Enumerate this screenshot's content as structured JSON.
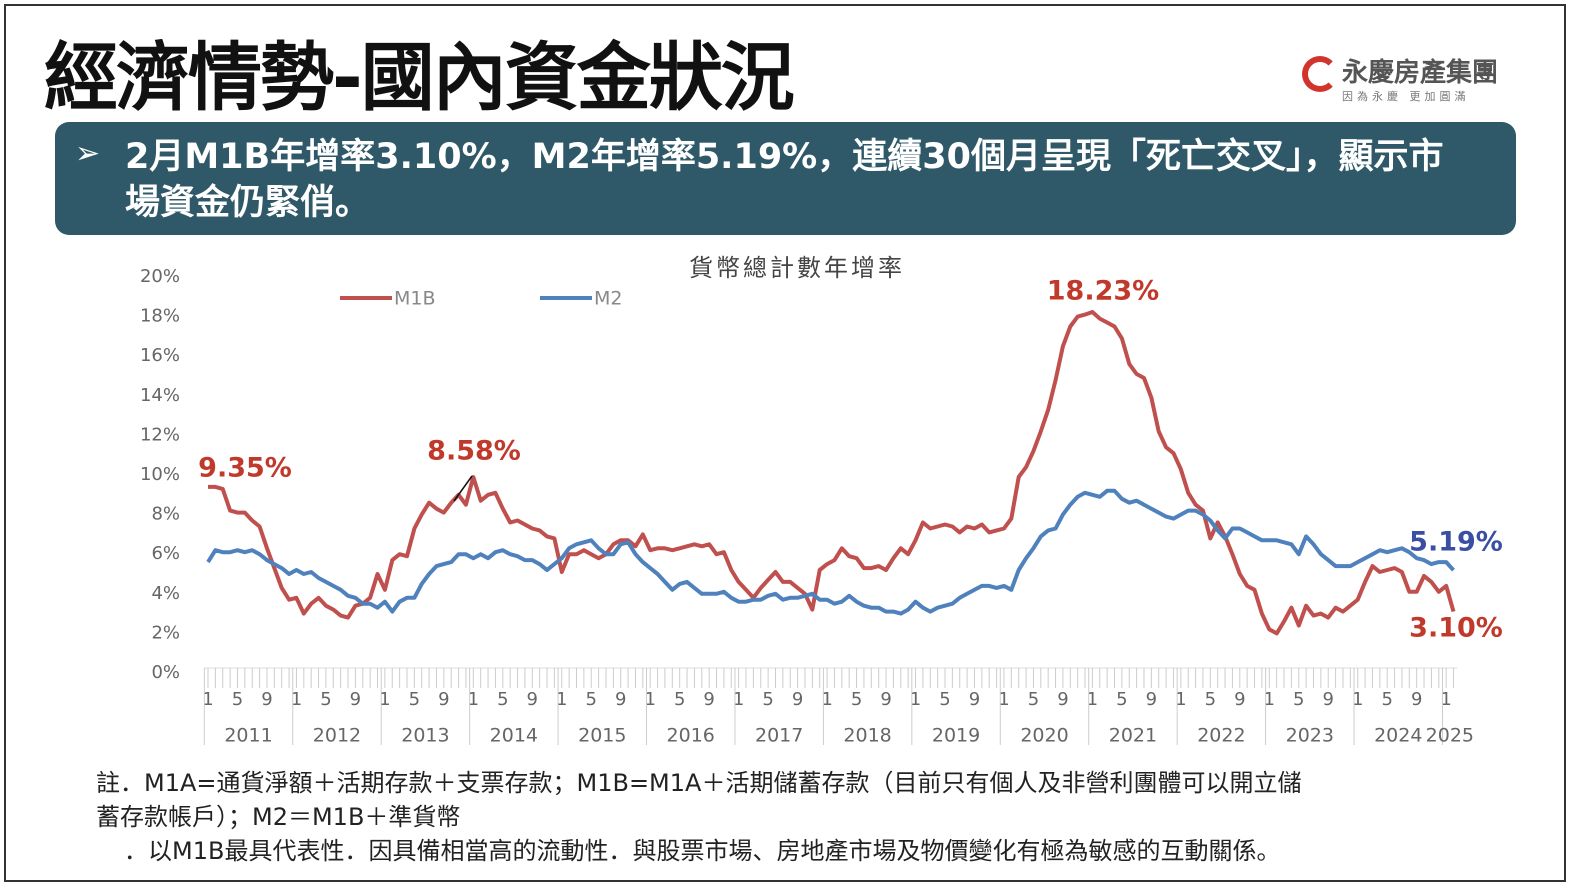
{
  "header": {
    "title": "經濟情勢-國內資金狀況",
    "logo": "永慶房產集團",
    "logo_tagline": "因為永慶 更加圓滿"
  },
  "banner": {
    "bullet": "➢",
    "text": "2月M1B年增率3.10%，M2年增率5.19%，連續30個月呈現「死亡交叉」，顯示市場資金仍緊俏。"
  },
  "chart_data": {
    "type": "line",
    "title": "貨幣總計數年增率",
    "categories": [
      "1",
      null,
      null,
      null,
      "5",
      null,
      null,
      null,
      "9",
      null,
      null,
      null,
      "1",
      null,
      null,
      null,
      "5",
      null,
      null,
      null,
      "9",
      null,
      null,
      null,
      "1",
      null,
      null,
      null,
      "5",
      null,
      null,
      null,
      "9",
      null,
      null,
      null,
      "1",
      null,
      null,
      null,
      "5",
      null,
      null,
      null,
      "9",
      null,
      null,
      null,
      "1",
      null,
      null,
      null,
      "5",
      null,
      null,
      null,
      "9",
      null,
      null,
      null,
      "1",
      null,
      null,
      null,
      "5",
      null,
      null,
      null,
      "9",
      null,
      null,
      null,
      "1",
      null,
      null,
      null,
      "5",
      null,
      null,
      null,
      "9",
      null,
      null,
      null,
      "1",
      null,
      null,
      null,
      "5",
      null,
      null,
      null,
      "9",
      null,
      null,
      null,
      "1",
      null,
      null,
      null,
      "5",
      null,
      null,
      null,
      "9",
      null,
      null,
      null,
      "1",
      null,
      null,
      null,
      "5",
      null,
      null,
      null,
      "9",
      null,
      null,
      null,
      "1",
      null,
      null,
      null,
      "5",
      null,
      null,
      null,
      "9",
      null,
      null,
      null,
      "1",
      null,
      null,
      null,
      "5",
      null,
      null,
      null,
      "9",
      null,
      null,
      null,
      "1",
      null,
      null,
      null,
      "5",
      null,
      null,
      null,
      "9",
      null,
      null,
      null,
      "1",
      null,
      null,
      null,
      "5",
      null,
      null,
      null,
      "9",
      null,
      null,
      null,
      "1",
      null
    ],
    "years": [
      "2011",
      "2012",
      "2013",
      "2014",
      "2015",
      "2016",
      "2017",
      "2018",
      "2019",
      "2020",
      "2021",
      "2022",
      "2023",
      "2024",
      "2025"
    ],
    "series": [
      {
        "name": "M1B",
        "color": "#c0504d",
        "values": [
          9.4,
          9.4,
          9.3,
          8.2,
          8.1,
          8.1,
          7.7,
          7.4,
          6.3,
          5.3,
          4.3,
          3.7,
          3.8,
          3.0,
          3.5,
          3.8,
          3.4,
          3.2,
          2.9,
          2.8,
          3.4,
          3.5,
          3.8,
          5.0,
          4.2,
          5.7,
          6.0,
          5.9,
          7.3,
          8.0,
          8.6,
          8.3,
          8.1,
          8.6,
          9.0,
          8.5,
          9.9,
          8.7,
          9.0,
          9.1,
          8.3,
          7.6,
          7.7,
          7.5,
          7.3,
          7.2,
          6.9,
          6.8,
          5.1,
          6.0,
          6.0,
          6.2,
          6.0,
          5.8,
          6.0,
          6.5,
          6.7,
          6.7,
          6.4,
          7.0,
          6.2,
          6.3,
          6.3,
          6.2,
          6.3,
          6.4,
          6.5,
          6.4,
          6.5,
          6.0,
          6.1,
          5.2,
          4.6,
          4.2,
          3.8,
          4.3,
          4.7,
          5.1,
          4.6,
          4.6,
          4.3,
          4.0,
          3.2,
          5.2,
          5.5,
          5.7,
          6.3,
          5.9,
          5.8,
          5.3,
          5.3,
          5.4,
          5.2,
          5.8,
          6.3,
          6.0,
          6.7,
          7.6,
          7.3,
          7.4,
          7.5,
          7.4,
          7.1,
          7.4,
          7.3,
          7.5,
          7.1,
          7.2,
          7.3,
          7.8,
          9.9,
          10.4,
          11.2,
          12.2,
          13.3,
          14.8,
          16.5,
          17.5,
          18.0,
          18.1,
          18.23,
          17.9,
          17.7,
          17.5,
          16.9,
          15.6,
          15.1,
          14.9,
          13.9,
          12.2,
          11.4,
          11.1,
          10.3,
          9.1,
          8.5,
          8.2,
          6.8,
          7.6,
          6.9,
          6.0,
          5.0,
          4.4,
          4.2,
          3.0,
          2.2,
          2.0,
          2.6,
          3.3,
          2.4,
          3.4,
          2.9,
          3.0,
          2.8,
          3.3,
          3.1,
          3.4,
          3.7,
          4.6,
          5.4,
          5.1,
          5.2,
          5.3,
          5.1,
          4.1,
          4.1,
          4.9,
          4.6,
          4.1,
          4.4,
          3.1
        ]
      },
      {
        "name": "M2",
        "color": "#4f81bd",
        "values": [
          5.6,
          6.2,
          6.1,
          6.1,
          6.2,
          6.1,
          6.2,
          6.0,
          5.7,
          5.5,
          5.3,
          5.0,
          5.2,
          5.0,
          5.1,
          4.8,
          4.6,
          4.4,
          4.2,
          3.9,
          3.8,
          3.5,
          3.5,
          3.3,
          3.6,
          3.1,
          3.6,
          3.8,
          3.8,
          4.5,
          5.0,
          5.4,
          5.5,
          5.6,
          6.0,
          6.0,
          5.8,
          6.0,
          5.8,
          6.1,
          6.2,
          6.0,
          5.9,
          5.7,
          5.7,
          5.5,
          5.2,
          5.5,
          5.8,
          6.3,
          6.5,
          6.6,
          6.7,
          6.3,
          6.0,
          6.0,
          6.5,
          6.6,
          6.0,
          5.6,
          5.3,
          5.0,
          4.6,
          4.2,
          4.5,
          4.6,
          4.3,
          4.0,
          4.0,
          4.0,
          4.1,
          3.8,
          3.6,
          3.6,
          3.7,
          3.7,
          3.9,
          4.0,
          3.7,
          3.8,
          3.8,
          3.9,
          4.0,
          3.7,
          3.7,
          3.5,
          3.6,
          3.9,
          3.6,
          3.4,
          3.3,
          3.3,
          3.1,
          3.1,
          3.0,
          3.2,
          3.6,
          3.3,
          3.1,
          3.3,
          3.4,
          3.5,
          3.8,
          4.0,
          4.2,
          4.4,
          4.4,
          4.3,
          4.4,
          4.2,
          5.2,
          5.8,
          6.3,
          6.9,
          7.2,
          7.3,
          8.0,
          8.5,
          8.9,
          9.1,
          9.0,
          8.9,
          9.2,
          9.2,
          8.8,
          8.6,
          8.7,
          8.5,
          8.3,
          8.1,
          7.9,
          7.8,
          8.0,
          8.2,
          8.2,
          8.0,
          7.7,
          7.2,
          6.8,
          7.3,
          7.3,
          7.1,
          6.9,
          6.7,
          6.7,
          6.7,
          6.6,
          6.5,
          6.0,
          6.9,
          6.5,
          6.0,
          5.7,
          5.4,
          5.4,
          5.4,
          5.6,
          5.8,
          6.0,
          6.2,
          6.1,
          6.2,
          6.3,
          6.1,
          5.8,
          5.7,
          5.5,
          5.6,
          5.6,
          5.19
        ]
      }
    ],
    "ylim": [
      0,
      20
    ],
    "yticks": [
      {
        "value": 0,
        "label": "0%"
      },
      {
        "value": 2,
        "label": "2%"
      },
      {
        "value": 4,
        "label": "4%"
      },
      {
        "value": 6,
        "label": "6%"
      },
      {
        "value": 8,
        "label": "8%"
      },
      {
        "value": 10,
        "label": "10%"
      },
      {
        "value": 12,
        "label": "12%"
      },
      {
        "value": 14,
        "label": "14%"
      },
      {
        "value": 16,
        "label": "16%"
      },
      {
        "value": 18,
        "label": "18%"
      },
      {
        "value": 20,
        "label": "20%"
      }
    ],
    "grid": false,
    "annotations": [
      {
        "text": "9.35%",
        "color": "#c0392b"
      },
      {
        "text": "8.58%",
        "color": "#c0392b"
      },
      {
        "text": "18.23%",
        "color": "#c0392b"
      },
      {
        "text": "5.19%",
        "color": "#3a4ea3"
      },
      {
        "text": "3.10%",
        "color": "#c0392b"
      }
    ]
  },
  "notes": [
    "註．M1A=通貨淨額＋活期存款＋支票存款；M1B=M1A＋活期儲蓄存款（目前只有個人及非營利團體可以開立儲",
    "蓄存款帳戶）；M2＝M1B＋準貨幣",
    "．以M1B最具代表性．因具備相當高的流動性．與股票市場、房地產市場及物價變化有極為敏感的互動關係。"
  ]
}
